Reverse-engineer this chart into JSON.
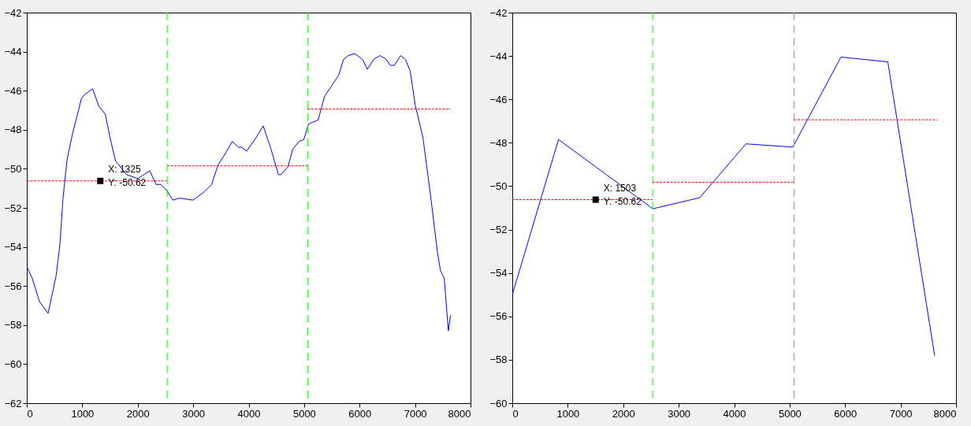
{
  "chart_data": [
    {
      "type": "line",
      "xlim": [
        0,
        8000
      ],
      "xticks": [
        0,
        1000,
        2000,
        3000,
        4000,
        5000,
        6000,
        7000,
        8000
      ],
      "ylim": [
        -62,
        -42
      ],
      "yticks": [
        -62,
        -60,
        -58,
        -56,
        -54,
        -52,
        -50,
        -48,
        -46,
        -44,
        -42
      ],
      "grid": false,
      "series": [
        {
          "type": "line",
          "color": "#0000ff",
          "line_style": "solid",
          "x": [
            0,
            97,
            229,
            384,
            527,
            596,
            653,
            727,
            825,
            985,
            1042,
            1186,
            1300,
            1415,
            1500,
            1600,
            1800,
            2000,
            2217,
            2331,
            2417,
            2520,
            2634,
            2760,
            2990,
            3047,
            3190,
            3333,
            3448,
            3562,
            3705,
            3819,
            3877,
            3963,
            4135,
            4261,
            4393,
            4536,
            4582,
            4708,
            4794,
            4908,
            4994,
            5080,
            5252,
            5367,
            5624,
            5710,
            5796,
            5911,
            6054,
            6140,
            6254,
            6369,
            6483,
            6552,
            6626,
            6741,
            6827,
            6913,
            7000,
            7142,
            7285,
            7400,
            7457,
            7526,
            7600,
            7640
          ],
          "values": [
            -55.0,
            -55.6,
            -56.8,
            -57.4,
            -55.5,
            -53.9,
            -51.5,
            -49.5,
            -48.2,
            -46.4,
            -46.2,
            -45.9,
            -46.8,
            -47.2,
            -48.4,
            -49.6,
            -50.3,
            -50.5,
            -50.1,
            -50.8,
            -50.8,
            -51.1,
            -51.6,
            -51.5,
            -51.6,
            -51.5,
            -51.2,
            -50.8,
            -49.8,
            -49.3,
            -48.6,
            -48.9,
            -48.9,
            -49.1,
            -48.4,
            -47.8,
            -48.9,
            -50.3,
            -50.3,
            -49.9,
            -49.0,
            -48.6,
            -48.5,
            -47.7,
            -47.5,
            -46.3,
            -45.2,
            -44.4,
            -44.2,
            -44.1,
            -44.4,
            -44.9,
            -44.4,
            -44.2,
            -44.4,
            -44.7,
            -44.7,
            -44.2,
            -44.4,
            -45.0,
            -46.7,
            -48.4,
            -51.5,
            -54.2,
            -55.2,
            -55.6,
            -58.3,
            -57.5
          ]
        },
        {
          "type": "line",
          "color": "#ff0000",
          "line_style": "dotted",
          "x": [
            0,
            2531
          ],
          "values": [
            -50.62,
            -50.62
          ]
        },
        {
          "type": "line",
          "color": "#ff0000",
          "line_style": "dotted",
          "x": [
            2531,
            5063
          ],
          "values": [
            -49.85,
            -49.85
          ]
        },
        {
          "type": "line",
          "color": "#ff0000",
          "line_style": "dotted",
          "x": [
            5063,
            7629
          ],
          "values": [
            -46.94,
            -46.94
          ]
        }
      ],
      "ref_lines": [
        {
          "axis": "x",
          "value": 2531,
          "color": "#00ff00",
          "line_style": "dashed"
        },
        {
          "axis": "x",
          "value": 5063,
          "color": "#00ff00",
          "line_style": "dashed"
        }
      ],
      "annotations": [
        {
          "text": "X: 1325\nY: -50.62",
          "x": 1325,
          "y": -50.62
        }
      ]
    },
    {
      "type": "line",
      "xlim": [
        0,
        8000
      ],
      "xticks": [
        0,
        1000,
        2000,
        3000,
        4000,
        5000,
        6000,
        7000,
        8000
      ],
      "ylim": [
        -60,
        -42
      ],
      "yticks": [
        -60,
        -58,
        -56,
        -54,
        -52,
        -50,
        -48,
        -46,
        -44,
        -42
      ],
      "grid": false,
      "series": [
        {
          "type": "line",
          "color": "#0000ff",
          "line_style": "solid",
          "x": [
            0,
            833,
            2534,
            3379,
            4213,
            5057,
            5925,
            6770,
            7615
          ],
          "values": [
            -55.0,
            -47.85,
            -51.04,
            -50.53,
            -48.05,
            -48.2,
            -44.05,
            -44.27,
            -57.82
          ]
        },
        {
          "type": "line",
          "color": "#ff0000",
          "line_style": "dotted",
          "x": [
            0,
            2529
          ],
          "values": [
            -50.62,
            -50.62
          ]
        },
        {
          "type": "line",
          "color": "#ff0000",
          "line_style": "dotted",
          "x": [
            2529,
            5080
          ],
          "values": [
            -49.82,
            -49.82
          ]
        },
        {
          "type": "line",
          "color": "#ff0000",
          "line_style": "dotted",
          "x": [
            5080,
            7661
          ],
          "values": [
            -46.94,
            -46.94
          ]
        }
      ],
      "ref_lines": [
        {
          "axis": "x",
          "value": 2529,
          "color": "#00ff00",
          "line_style": "dashed"
        },
        {
          "axis": "x",
          "value": 5080,
          "color": "#00ff00",
          "line_style": "dashed"
        }
      ],
      "annotations": [
        {
          "text": "X: 1503\nY: -50.62",
          "x": 1503,
          "y": -50.62
        }
      ]
    }
  ]
}
